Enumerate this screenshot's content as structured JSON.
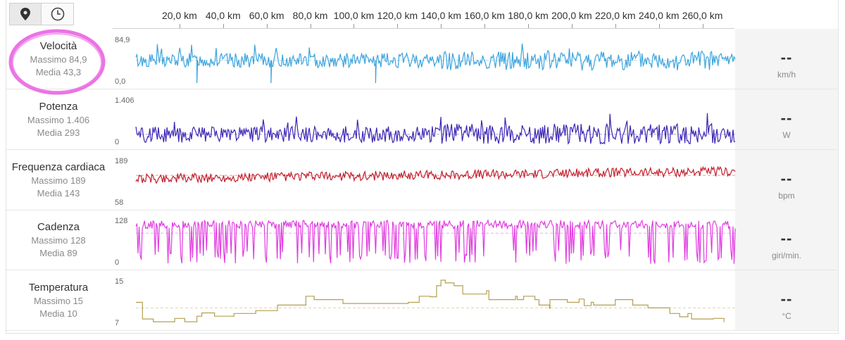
{
  "toolbar": {
    "buttons": [
      {
        "icon": "map-pin-icon",
        "active": true
      },
      {
        "icon": "clock-icon",
        "active": false
      }
    ]
  },
  "chart_data": {
    "type": "line",
    "x_unit": "km",
    "x_ticks": [
      "20,0 km",
      "40,0 km",
      "60,0 km",
      "80,0 km",
      "100,0 km",
      "120,0 km",
      "140,0 km",
      "160,0 km",
      "180,0 km",
      "200,0 km",
      "220,0 km",
      "240,0 km",
      "260,0 km"
    ],
    "xlim": [
      0,
      275
    ],
    "series": [
      {
        "name": "Velocità",
        "max_label": "Massimo 84,9",
        "avg_label": "Media 43,3",
        "ylim": [
          0,
          84.9
        ],
        "ymax_label": "84,9",
        "ymin_label": "0,0",
        "avg": 43.3,
        "unit": "km/h",
        "value": "--",
        "color": "#3ba3dc",
        "amplitude": 14,
        "drops": [
          28,
          62,
          110
        ]
      },
      {
        "name": "Potenza",
        "max_label": "Massimo 1.406",
        "avg_label": "Media 293",
        "ylim": [
          0,
          1406
        ],
        "ymax_label": "1.406",
        "ymin_label": "0",
        "avg": 293,
        "unit": "W",
        "value": "--",
        "color": "#3d25b5",
        "amplitude": 260,
        "drops": []
      },
      {
        "name": "Frequenza cardiaca",
        "max_label": "Massimo 189",
        "avg_label": "Media 143",
        "ylim": [
          58,
          189
        ],
        "ymax_label": "189",
        "ymin_label": "58",
        "avg": 143,
        "unit": "bpm",
        "value": "--",
        "color": "#c21f2c",
        "amplitude": 14,
        "drops": []
      },
      {
        "name": "Cadenza",
        "max_label": "Massimo 128",
        "avg_label": "Media 89",
        "ylim": [
          0,
          128
        ],
        "ymax_label": "128",
        "ymin_label": "0",
        "avg": 89,
        "unit": "giri/min.",
        "value": "--",
        "color": "#e03ce0",
        "amplitude": 12,
        "drops": []
      },
      {
        "name": "Temperatura",
        "max_label": "Massimo 15",
        "avg_label": "Media 10",
        "ylim": [
          7,
          15
        ],
        "ymax_label": "15",
        "ymin_label": "7",
        "avg": 10,
        "unit": "°C",
        "value": "--",
        "color": "#b3a050",
        "amplitude": 0,
        "drops": [],
        "profile": [
          [
            0,
            11
          ],
          [
            3,
            8
          ],
          [
            8,
            7.5
          ],
          [
            25,
            7.5
          ],
          [
            28,
            8.5
          ],
          [
            40,
            8.5
          ],
          [
            45,
            9
          ],
          [
            55,
            9.5
          ],
          [
            65,
            10.5
          ],
          [
            72,
            10.5
          ],
          [
            78,
            11.5
          ],
          [
            90,
            11.5
          ],
          [
            95,
            10.8
          ],
          [
            110,
            10.8
          ],
          [
            118,
            10.8
          ],
          [
            125,
            11
          ],
          [
            130,
            11.5
          ],
          [
            135,
            12
          ],
          [
            138,
            14
          ],
          [
            140,
            15
          ],
          [
            142,
            14.5
          ],
          [
            146,
            14
          ],
          [
            150,
            12.5
          ],
          [
            158,
            12.5
          ],
          [
            162,
            11.5
          ],
          [
            175,
            11.5
          ],
          [
            185,
            10.5
          ],
          [
            190,
            11.5
          ],
          [
            198,
            11
          ],
          [
            210,
            10.5
          ],
          [
            220,
            11.5
          ],
          [
            228,
            10.5
          ],
          [
            235,
            10
          ],
          [
            245,
            9
          ],
          [
            255,
            8
          ],
          [
            265,
            7.5
          ],
          [
            270,
            6.5
          ]
        ]
      }
    ]
  }
}
